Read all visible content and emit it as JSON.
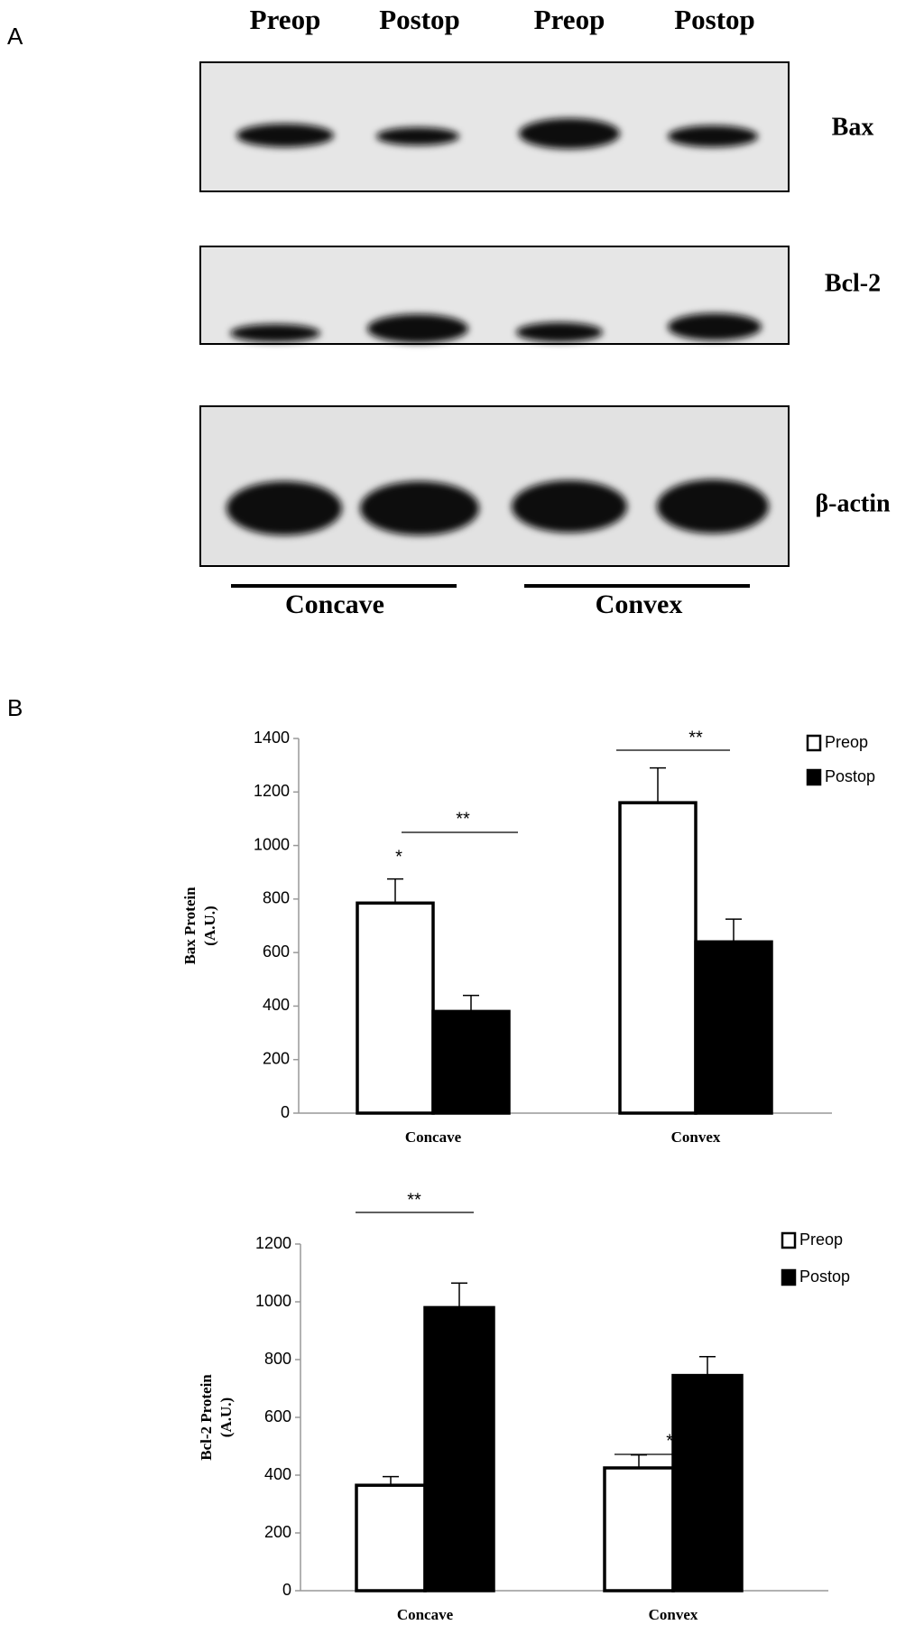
{
  "panel_labels": [
    "A",
    "B"
  ],
  "blot": {
    "lanes": [
      "Preop",
      "Postop",
      "Preop",
      "Postop"
    ],
    "proteins": [
      "Bax",
      "Bcl-2",
      "β-actin"
    ],
    "groups": [
      "Concave",
      "Convex"
    ]
  },
  "chart_data": [
    {
      "type": "bar",
      "ylabel_lines": [
        "Bax Protein",
        "(A.U.)"
      ],
      "categories": [
        "Concave",
        "Convex"
      ],
      "series": [
        {
          "name": "Preop",
          "color": "#ffffff",
          "values": [
            785,
            1160
          ],
          "errors": [
            90,
            130
          ]
        },
        {
          "name": "Postop",
          "color": "#000000",
          "values": [
            380,
            640
          ],
          "errors": [
            60,
            85
          ]
        }
      ],
      "ylim": [
        0,
        1400
      ],
      "yticks": [
        0,
        200,
        400,
        600,
        800,
        1000,
        1200,
        1400
      ],
      "annotations": [
        "*",
        "**",
        "**"
      ]
    },
    {
      "type": "bar",
      "ylabel_lines": [
        "Bcl-2 Protein",
        "(A.U.)"
      ],
      "categories": [
        "Concave",
        "Convex"
      ],
      "series": [
        {
          "name": "Preop",
          "color": "#ffffff",
          "values": [
            365,
            425
          ],
          "errors": [
            30,
            45
          ]
        },
        {
          "name": "Postop",
          "color": "#000000",
          "values": [
            980,
            745
          ],
          "errors": [
            85,
            65
          ]
        }
      ],
      "ylim": [
        0,
        1200
      ],
      "yticks": [
        0,
        200,
        400,
        600,
        800,
        1000,
        1200
      ],
      "annotations": [
        "**",
        "**"
      ]
    }
  ]
}
